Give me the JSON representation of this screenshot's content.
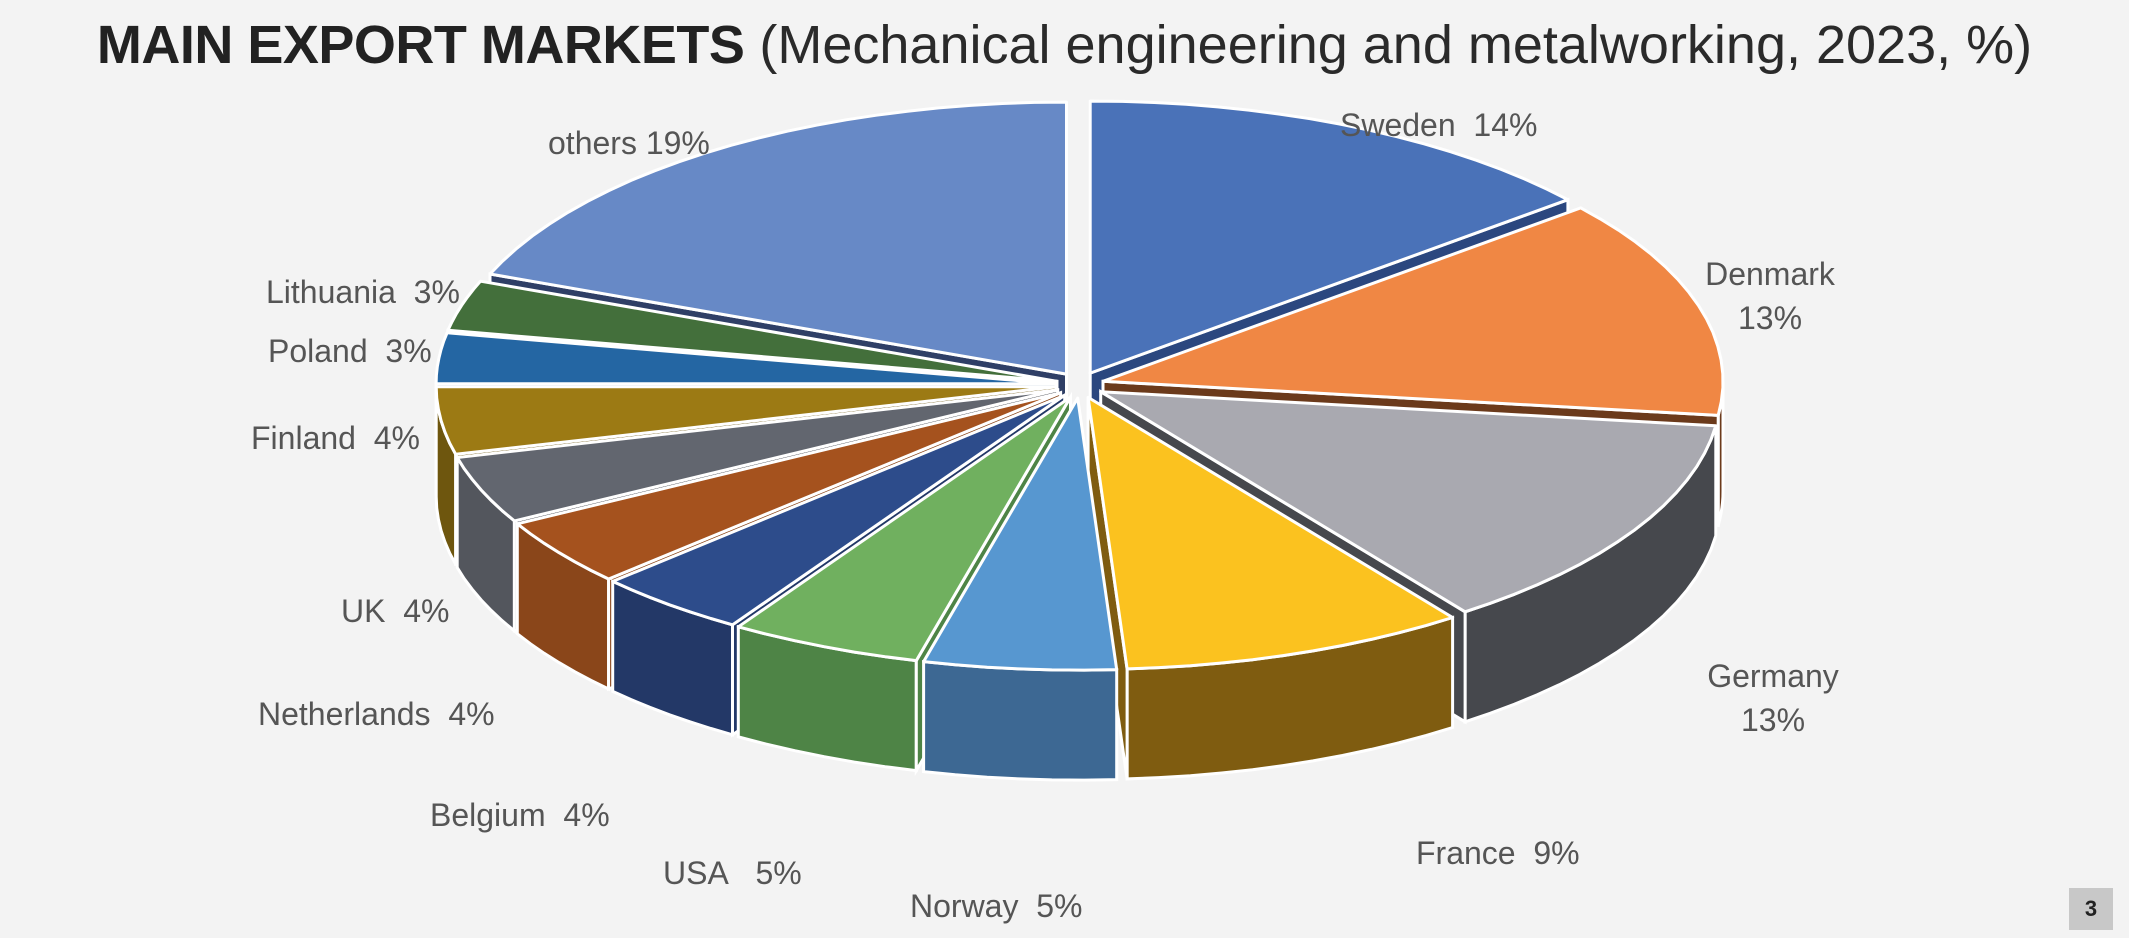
{
  "slide": {
    "title_bold": "MAIN EXPORT MARKETS",
    "title_light": "(Mechanical engineering and metalworking, 2023, %)",
    "page_number": "3"
  },
  "chart_data": {
    "type": "pie",
    "title": "MAIN EXPORT MARKETS (Mechanical engineering and metalworking, 2023, %)",
    "unit": "%",
    "style": "3d-exploded",
    "slices": [
      {
        "name": "Sweden",
        "value": 14,
        "label": "14%",
        "color": "#4a72b8",
        "side": "#2b477f"
      },
      {
        "name": "Denmark",
        "value": 13,
        "label": "13%",
        "color": "#f08744",
        "side": "#6b3a1b"
      },
      {
        "name": "Germany",
        "value": 13,
        "label": "13%",
        "color": "#a9a9b0",
        "side": "#46484d"
      },
      {
        "name": "France",
        "value": 9,
        "label": "9%",
        "color": "#fbc21f",
        "side": "#7f5c10"
      },
      {
        "name": "Norway",
        "value": 5,
        "label": "5%",
        "color": "#5797d0",
        "side": "#3d6893"
      },
      {
        "name": "USA",
        "value": 5,
        "label": "5%",
        "color": "#70b05f",
        "side": "#4e8446"
      },
      {
        "name": "Belgium",
        "value": 4,
        "label": "4%",
        "color": "#2d4c8b",
        "side": "#233867"
      },
      {
        "name": "Netherlands",
        "value": 4,
        "label": "4%",
        "color": "#a5521e",
        "side": "#8a461a"
      },
      {
        "name": "UK",
        "value": 4,
        "label": "4%",
        "color": "#62666f",
        "side": "#53565d"
      },
      {
        "name": "Finland",
        "value": 4,
        "label": "4%",
        "color": "#9c7a14",
        "side": "#6e560e"
      },
      {
        "name": "Poland",
        "value": 3,
        "label": "3%",
        "color": "#2466a3",
        "side": "#1b4d7a"
      },
      {
        "name": "Lithuania",
        "value": 3,
        "label": "3%",
        "color": "#436f3b",
        "side": "#30512b"
      },
      {
        "name": "others",
        "value": 19,
        "label": "19%",
        "color": "#6789c6",
        "side": "#2f3f66"
      }
    ]
  }
}
